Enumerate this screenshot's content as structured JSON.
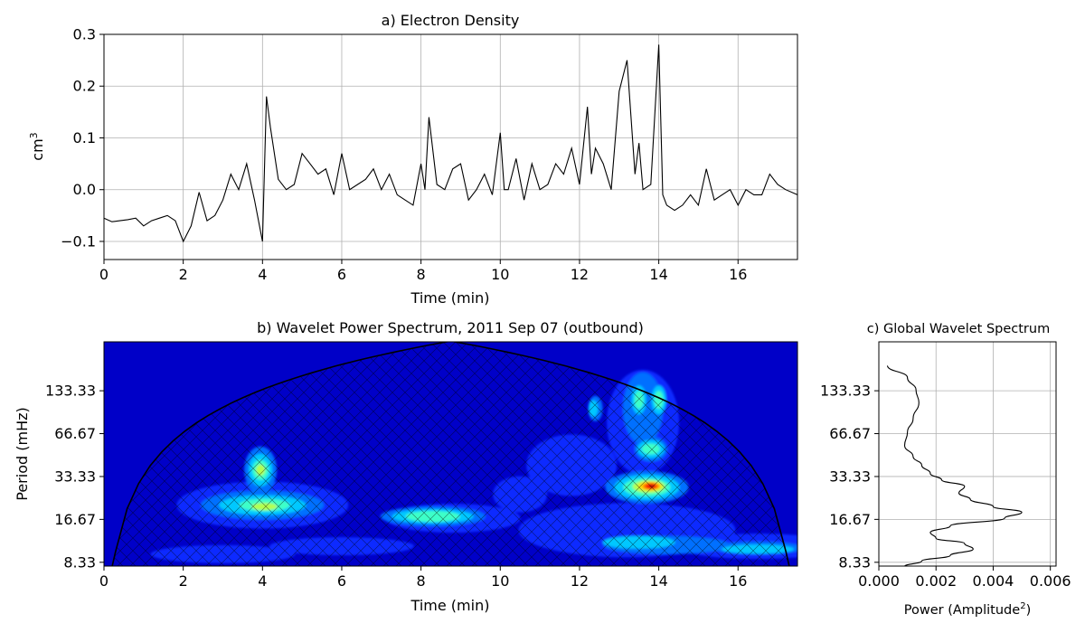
{
  "chart_data": [
    {
      "type": "line",
      "title": "a) Electron Density",
      "xlabel": "Time (min)",
      "ylabel": "cm",
      "ylabel_sup": "3",
      "xlim": [
        0,
        17.5
      ],
      "ylim": [
        -0.135,
        0.3
      ],
      "xticks": [
        0,
        2,
        4,
        6,
        8,
        10,
        12,
        14,
        16
      ],
      "yticks": [
        -0.1,
        0.0,
        0.1,
        0.2,
        0.3
      ],
      "ytick_labels": [
        "−0.1",
        "0.0",
        "0.1",
        "0.2",
        "0.3"
      ],
      "grid": true,
      "color": "#000000",
      "x": [
        0,
        0.2,
        0.4,
        0.6,
        0.8,
        1,
        1.2,
        1.4,
        1.6,
        1.8,
        2,
        2.2,
        2.4,
        2.6,
        2.8,
        3,
        3.2,
        3.4,
        3.6,
        3.8,
        4,
        4.1,
        4.2,
        4.4,
        4.6,
        4.8,
        5,
        5.2,
        5.4,
        5.6,
        5.8,
        6,
        6.2,
        6.4,
        6.6,
        6.8,
        7,
        7.2,
        7.4,
        7.6,
        7.8,
        8,
        8.1,
        8.2,
        8.4,
        8.6,
        8.8,
        9,
        9.2,
        9.4,
        9.6,
        9.8,
        10,
        10.1,
        10.2,
        10.4,
        10.6,
        10.8,
        11,
        11.2,
        11.4,
        11.6,
        11.8,
        12,
        12.2,
        12.3,
        12.4,
        12.6,
        12.8,
        13,
        13.2,
        13.4,
        13.5,
        13.6,
        13.8,
        14,
        14.1,
        14.2,
        14.4,
        14.6,
        14.8,
        15,
        15.2,
        15.4,
        15.6,
        15.8,
        16,
        16.2,
        16.4,
        16.6,
        16.8,
        17,
        17.2,
        17.5
      ],
      "y": [
        -0.055,
        -0.062,
        -0.06,
        -0.058,
        -0.055,
        -0.07,
        -0.06,
        -0.055,
        -0.05,
        -0.06,
        -0.1,
        -0.07,
        -0.005,
        -0.06,
        -0.05,
        -0.02,
        0.03,
        0.0,
        0.05,
        -0.02,
        -0.1,
        0.18,
        0.12,
        0.02,
        0.0,
        0.01,
        0.07,
        0.05,
        0.03,
        0.04,
        -0.01,
        0.07,
        0.0,
        0.01,
        0.02,
        0.04,
        0.0,
        0.03,
        -0.01,
        -0.02,
        -0.03,
        0.05,
        0.0,
        0.14,
        0.01,
        0.0,
        0.04,
        0.05,
        -0.02,
        0.0,
        0.03,
        -0.01,
        0.11,
        0.0,
        0.0,
        0.06,
        -0.02,
        0.05,
        0.0,
        0.01,
        0.05,
        0.03,
        0.08,
        0.01,
        0.16,
        0.03,
        0.08,
        0.05,
        0.0,
        0.19,
        0.25,
        0.03,
        0.09,
        0.0,
        0.01,
        0.28,
        -0.01,
        -0.03,
        -0.04,
        -0.03,
        -0.01,
        -0.03,
        0.04,
        -0.02,
        -0.01,
        0.0,
        -0.03,
        0.0,
        -0.01,
        -0.01,
        0.03,
        0.01,
        0.0,
        -0.01
      ]
    },
    {
      "type": "heatmap",
      "title": "b) Wavelet Power Spectrum, 2011 Sep 07 (outbound)",
      "xlabel": "Time (min)",
      "ylabel": "Period (mHz)",
      "xlim": [
        0,
        17.5
      ],
      "ylim_log2": [
        2.97,
        8.2
      ],
      "xticks": [
        0,
        2,
        4,
        6,
        8,
        10,
        12,
        14,
        16
      ],
      "yticks": [
        8.33,
        16.67,
        33.33,
        66.67,
        133.33
      ],
      "ytick_labels": [
        "8.33",
        "16.67",
        "33.33",
        "66.67",
        "133.33"
      ],
      "colormap": "jet",
      "level_colors": [
        "#0000c8",
        "#0a2cff",
        "#0070ff",
        "#00c8ff",
        "#3cffc8",
        "#b4ff50",
        "#ffd700",
        "#ff7a00",
        "#ff1a00",
        "#b00000"
      ],
      "blobs": [
        {
          "t": 4.0,
          "p": 21,
          "level": 3
        },
        {
          "t": 3.95,
          "p": 37,
          "level": 4
        },
        {
          "t": 4.05,
          "p": 21,
          "level": 4
        },
        {
          "t": 8.3,
          "p": 17.5,
          "level": 4
        },
        {
          "t": 13.8,
          "p": 28.5,
          "level": 8
        },
        {
          "t": 13.5,
          "p": 115,
          "level": 3
        },
        {
          "t": 14.0,
          "p": 115,
          "level": 3
        },
        {
          "t": 13.8,
          "p": 52,
          "level": 4
        },
        {
          "t": 12.35,
          "p": 100,
          "level": 3
        },
        {
          "t": 13.5,
          "p": 11.5,
          "level": 3
        },
        {
          "t": 16.5,
          "p": 10.5,
          "level": 3
        }
      ],
      "coi": "cone-of-influence (hatched)"
    },
    {
      "type": "line",
      "title": "c) Global Wavelet Spectrum",
      "xlabel": "Power (Amplitude",
      "xlabel_sup": "2",
      "xlabel_end": ")",
      "xlim": [
        0,
        0.0062
      ],
      "xticks": [
        0.0,
        0.002,
        0.004,
        0.006
      ],
      "xtick_labels": [
        "0.000",
        "0.002",
        "0.004",
        "0.006"
      ],
      "yticks": [
        8.33,
        16.67,
        33.33,
        66.67,
        133.33
      ],
      "ytick_labels": [
        "8.33",
        "16.67",
        "33.33",
        "66.67",
        "133.33"
      ],
      "grid": true,
      "color": "#000000",
      "power": [
        0.0009,
        0.0015,
        0.0025,
        0.0033,
        0.003,
        0.002,
        0.0018,
        0.0025,
        0.0044,
        0.005,
        0.004,
        0.0032,
        0.0028,
        0.003,
        0.0022,
        0.0018,
        0.0015,
        0.0012,
        0.0009,
        0.001,
        0.0012,
        0.0014,
        0.0013,
        0.001,
        0.0003
      ],
      "period": [
        7.8,
        8.5,
        9.3,
        10.3,
        11.3,
        12.3,
        13.5,
        15.0,
        17.0,
        18.7,
        20.5,
        23.0,
        25.5,
        28.5,
        31.5,
        35.0,
        40.0,
        46.0,
        55.0,
        68.0,
        85.0,
        110.0,
        135.0,
        165.0,
        200.0
      ]
    }
  ]
}
